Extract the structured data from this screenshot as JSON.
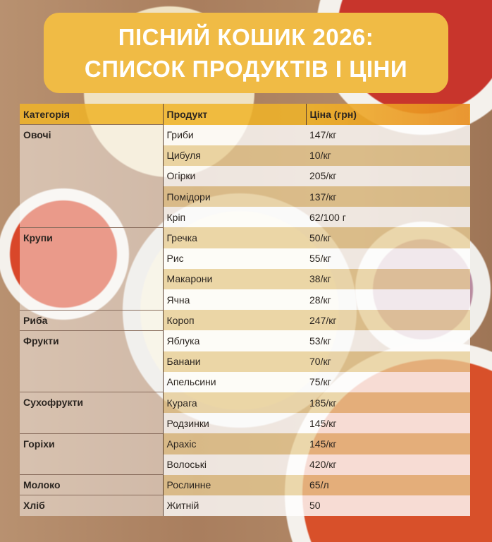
{
  "title": {
    "line1": "ПІСНИЙ КОШИК 2026:",
    "line2": "СПИСОК ПРОДУКТІВ І ЦІНИ"
  },
  "headers": {
    "category": "Категорія",
    "product": "Продукт",
    "price": "Ціна (грн)"
  },
  "groups": [
    {
      "category": "Овочі",
      "items": [
        [
          "Гриби",
          "147/кг"
        ],
        [
          "Цибуля",
          "10/кг"
        ],
        [
          "Огірки",
          "205/кг"
        ],
        [
          "Помідори",
          "137/кг"
        ],
        [
          "Кріп",
          "62/100 г"
        ]
      ]
    },
    {
      "category": "Крупи",
      "items": [
        [
          "Гречка",
          "50/кг"
        ],
        [
          "Рис",
          "55/кг"
        ],
        [
          "Макарони",
          "38/кг"
        ],
        [
          "Ячна",
          "28/кг"
        ]
      ]
    },
    {
      "category": "Риба",
      "items": [
        [
          "Короп",
          "247/кг"
        ]
      ]
    },
    {
      "category": "Фрукти",
      "items": [
        [
          "Яблука",
          "53/кг"
        ],
        [
          "Банани",
          "70/кг"
        ],
        [
          "Апельсини",
          "75/кг"
        ]
      ]
    },
    {
      "category": "Сухофрукти",
      "items": [
        [
          "Курага",
          "185/кг"
        ],
        [
          "Родзинки",
          "145/кг"
        ]
      ]
    },
    {
      "category": "Горіхи",
      "items": [
        [
          "Арахіс",
          "145/кг"
        ],
        [
          "Волоські",
          "420/кг"
        ]
      ]
    },
    {
      "category": "Молоко",
      "items": [
        [
          "Рослинне",
          "65/л"
        ]
      ]
    },
    {
      "category": "Хліб",
      "items": [
        [
          "Житній",
          "50"
        ]
      ]
    }
  ]
}
